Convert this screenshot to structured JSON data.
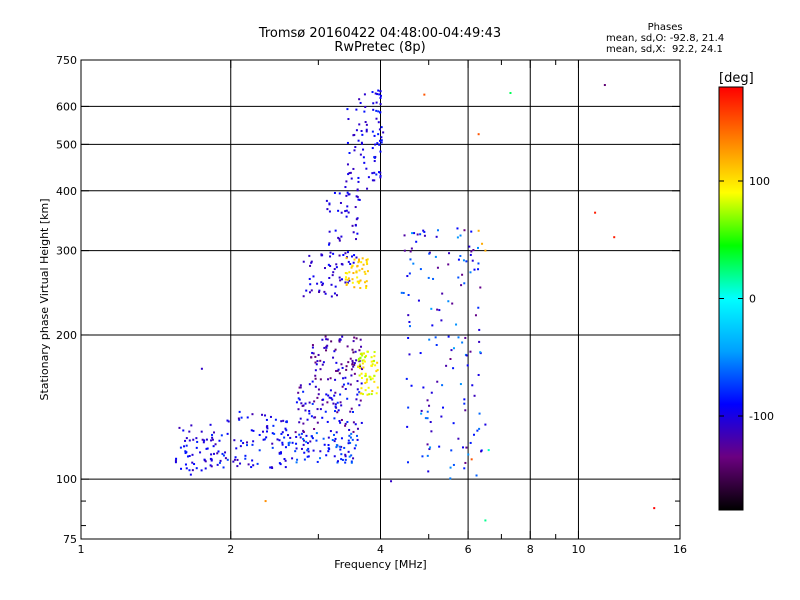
{
  "title": {
    "line1": "Tromsø 20160422 04:48:00-04:49:43",
    "line2": "RwPretec (8p)"
  },
  "phases_box": {
    "header": "Phases",
    "line_o": "mean, sd,O: -92.8, 21.4",
    "line_x": "mean, sd,X:  92.2, 24.1"
  },
  "colorbar": {
    "label": "[deg]",
    "ticks": [
      "100",
      "0",
      "-100"
    ],
    "tick_values": [
      100,
      0,
      -100
    ],
    "range": [
      -180,
      180
    ],
    "colors": [
      "#000000",
      "#6b0080",
      "#0000ff",
      "#00a0ff",
      "#00ffff",
      "#00ff00",
      "#ffff00",
      "#ff8000",
      "#ff0000"
    ]
  },
  "chart_data": {
    "type": "scatter",
    "xlabel": "Frequency [MHz]",
    "ylabel": "Stationary phase Virtual Height [km]",
    "xscale": "log",
    "yscale": "log",
    "xlim": [
      1,
      16
    ],
    "ylim": [
      75,
      750
    ],
    "x_ticks": [
      1,
      2,
      4,
      6,
      8,
      10,
      16
    ],
    "x_tick_labels": [
      "1",
      "2",
      "4",
      "6",
      "8",
      "10",
      "16"
    ],
    "x_minor_ticks": [
      3,
      5,
      7,
      9
    ],
    "y_ticks": [
      75,
      100,
      200,
      300,
      400,
      500,
      600,
      750
    ],
    "y_tick_labels": [
      "75",
      "100",
      "200",
      "300",
      "400",
      "500",
      "600",
      "750"
    ],
    "y_minor_ticks": [
      80,
      90
    ],
    "grid": true,
    "grid_x": [
      2,
      4,
      6,
      8,
      10
    ],
    "grid_y": [
      100,
      200,
      300,
      400,
      500,
      600
    ],
    "clusters": [
      {
        "x": [
          1.55,
          1.9
        ],
        "y": [
          102,
          130
        ],
        "phase": -100,
        "spread": 20
      },
      {
        "x": [
          1.9,
          2.6
        ],
        "y": [
          105,
          140
        ],
        "phase": -95,
        "spread": 25
      },
      {
        "x": [
          2.5,
          3.6
        ],
        "y": [
          108,
          125
        ],
        "phase": -85,
        "spread": 30
      },
      {
        "x": [
          2.7,
          3.7
        ],
        "y": [
          125,
          160
        ],
        "phase": -105,
        "spread": 30
      },
      {
        "x": [
          2.9,
          3.7
        ],
        "y": [
          160,
          200
        ],
        "phase": -120,
        "spread": 25
      },
      {
        "x": [
          3.6,
          3.95
        ],
        "y": [
          150,
          185
        ],
        "phase": 90,
        "spread": 20
      },
      {
        "x": [
          2.8,
          3.5
        ],
        "y": [
          240,
          300
        ],
        "phase": -105,
        "spread": 15
      },
      {
        "x": [
          3.1,
          3.6
        ],
        "y": [
          280,
          400
        ],
        "phase": -100,
        "spread": 15
      },
      {
        "x": [
          3.4,
          3.8
        ],
        "y": [
          250,
          290
        ],
        "phase": 105,
        "spread": 15
      },
      {
        "x": [
          3.4,
          3.8
        ],
        "y": [
          380,
          640
        ],
        "phase": -100,
        "spread": 15
      },
      {
        "x": [
          3.85,
          4.05
        ],
        "y": [
          420,
          650
        ],
        "phase": -95,
        "spread": 15
      },
      {
        "x": [
          4.4,
          6.4
        ],
        "y": [
          100,
          340
        ],
        "phase": -90,
        "spread": 45
      }
    ],
    "sparse_points": [
      {
        "x": 4.9,
        "y": 635,
        "phase": 150
      },
      {
        "x": 6.3,
        "y": 525,
        "phase": 150
      },
      {
        "x": 7.3,
        "y": 640,
        "phase": 30
      },
      {
        "x": 11.3,
        "y": 665,
        "phase": -140
      },
      {
        "x": 10.8,
        "y": 360,
        "phase": 170
      },
      {
        "x": 11.8,
        "y": 320,
        "phase": 170
      },
      {
        "x": 6.3,
        "y": 330,
        "phase": 120
      },
      {
        "x": 6.4,
        "y": 310,
        "phase": 120
      },
      {
        "x": 6.5,
        "y": 300,
        "phase": 120
      },
      {
        "x": 6.3,
        "y": 165,
        "phase": -100
      },
      {
        "x": 6.5,
        "y": 130,
        "phase": -100
      },
      {
        "x": 6.6,
        "y": 115,
        "phase": 10
      },
      {
        "x": 6.5,
        "y": 82,
        "phase": 20
      },
      {
        "x": 14.2,
        "y": 87,
        "phase": 180
      },
      {
        "x": 2.35,
        "y": 90,
        "phase": 130
      },
      {
        "x": 4.2,
        "y": 99,
        "phase": -110
      },
      {
        "x": 6.1,
        "y": 110,
        "phase": 150
      },
      {
        "x": 1.75,
        "y": 170,
        "phase": -110
      }
    ]
  }
}
